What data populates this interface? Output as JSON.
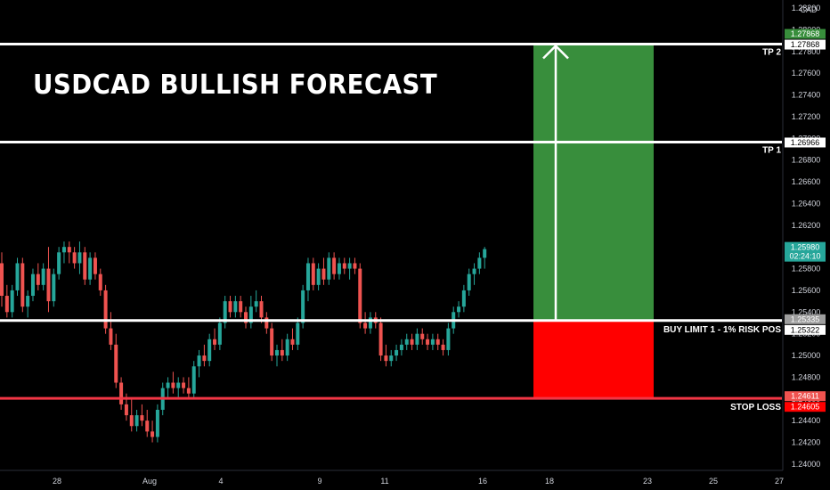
{
  "title": "USDCAD BULLISH FORECAST",
  "currency": "CAD",
  "last_price": "1.25980",
  "countdown": "02:24:10",
  "levels": {
    "tp2": {
      "label": "TP 2",
      "value": 1.27868,
      "tag": "1.27868",
      "entry_tag": "1.27868"
    },
    "tp1": {
      "label": "TP 1",
      "value": 1.26966,
      "tag": "1.26966"
    },
    "entry": {
      "label": "BUY LIMIT 1 - 1% RISK POS",
      "value": 1.25322,
      "tag": "1.25322",
      "tag_upper": "1.25335"
    },
    "stop": {
      "label": "STOP LOSS",
      "value": 1.24605,
      "tag": "1.24605",
      "tag_upper": "1.24611"
    }
  },
  "chart_data": {
    "type": "candlestick",
    "title": "USDCAD BULLISH FORECAST",
    "ylim": [
      1.2395,
      1.2825
    ],
    "y_ticks": [
      "1.28200",
      "1.28000",
      "1.27800",
      "1.27600",
      "1.27400",
      "1.27200",
      "1.27000",
      "1.26800",
      "1.26600",
      "1.26400",
      "1.26200",
      "1.26000",
      "1.25800",
      "1.25600",
      "1.25400",
      "1.25200",
      "1.25000",
      "1.24800",
      "1.24600",
      "1.24400",
      "1.24200",
      "1.24000"
    ],
    "x_ticks": [
      "28",
      "Aug",
      "4",
      "9",
      "11",
      "16",
      "18",
      "23",
      "25",
      "27"
    ],
    "colors": {
      "up": "#26a69a",
      "down": "#ef5350",
      "profit": "#388e3c",
      "loss": "#ff0000",
      "stop_line": "#f23645"
    },
    "candles": [
      [
        1.2585,
        1.2595,
        1.2545,
        1.2555
      ],
      [
        1.2555,
        1.2565,
        1.2535,
        1.254
      ],
      [
        1.254,
        1.2565,
        1.2535,
        1.256
      ],
      [
        1.256,
        1.259,
        1.2555,
        1.2585
      ],
      [
        1.2585,
        1.259,
        1.254,
        1.2545
      ],
      [
        1.2545,
        1.256,
        1.2535,
        1.2555
      ],
      [
        1.2555,
        1.258,
        1.255,
        1.2575
      ],
      [
        1.2575,
        1.2585,
        1.256,
        1.2565
      ],
      [
        1.2565,
        1.2585,
        1.256,
        1.258
      ],
      [
        1.258,
        1.26,
        1.254,
        1.255
      ],
      [
        1.255,
        1.258,
        1.2545,
        1.2575
      ],
      [
        1.2575,
        1.26,
        1.257,
        1.2595
      ],
      [
        1.2595,
        1.2605,
        1.2585,
        1.26
      ],
      [
        1.26,
        1.2605,
        1.2585,
        1.2595
      ],
      [
        1.2595,
        1.26,
        1.258,
        1.2585
      ],
      [
        1.2585,
        1.2605,
        1.2575,
        1.2595
      ],
      [
        1.2595,
        1.26,
        1.2565,
        1.257
      ],
      [
        1.257,
        1.2595,
        1.2565,
        1.259
      ],
      [
        1.259,
        1.2595,
        1.257,
        1.2575
      ],
      [
        1.2575,
        1.258,
        1.2555,
        1.256
      ],
      [
        1.256,
        1.2565,
        1.252,
        1.2525
      ],
      [
        1.2525,
        1.254,
        1.2505,
        1.251
      ],
      [
        1.251,
        1.252,
        1.247,
        1.2475
      ],
      [
        1.2475,
        1.248,
        1.245,
        1.2455
      ],
      [
        1.2455,
        1.2465,
        1.244,
        1.2445
      ],
      [
        1.2445,
        1.246,
        1.243,
        1.2435
      ],
      [
        1.2435,
        1.245,
        1.243,
        1.2445
      ],
      [
        1.2445,
        1.2455,
        1.2435,
        1.244
      ],
      [
        1.244,
        1.245,
        1.2425,
        1.243
      ],
      [
        1.243,
        1.244,
        1.242,
        1.2425
      ],
      [
        1.2425,
        1.2455,
        1.242,
        1.245
      ],
      [
        1.245,
        1.2475,
        1.2445,
        1.247
      ],
      [
        1.247,
        1.248,
        1.246,
        1.2475
      ],
      [
        1.2475,
        1.2485,
        1.2465,
        1.247
      ],
      [
        1.247,
        1.248,
        1.246,
        1.2475
      ],
      [
        1.2475,
        1.248,
        1.2465,
        1.247
      ],
      [
        1.247,
        1.248,
        1.246,
        1.2465
      ],
      [
        1.2465,
        1.2495,
        1.246,
        1.249
      ],
      [
        1.249,
        1.2505,
        1.248,
        1.25
      ],
      [
        1.25,
        1.251,
        1.249,
        1.2495
      ],
      [
        1.2495,
        1.252,
        1.249,
        1.2515
      ],
      [
        1.2515,
        1.2525,
        1.2505,
        1.251
      ],
      [
        1.251,
        1.2535,
        1.2505,
        1.253
      ],
      [
        1.253,
        1.2555,
        1.2525,
        1.255
      ],
      [
        1.255,
        1.2555,
        1.2535,
        1.254
      ],
      [
        1.254,
        1.2555,
        1.2535,
        1.255
      ],
      [
        1.255,
        1.2555,
        1.2535,
        1.254
      ],
      [
        1.254,
        1.2545,
        1.2525,
        1.253
      ],
      [
        1.253,
        1.2555,
        1.2525,
        1.2545
      ],
      [
        1.2545,
        1.256,
        1.254,
        1.255
      ],
      [
        1.255,
        1.2555,
        1.253,
        1.2535
      ],
      [
        1.2535,
        1.254,
        1.252,
        1.2525
      ],
      [
        1.2525,
        1.253,
        1.2495,
        1.25
      ],
      [
        1.25,
        1.251,
        1.249,
        1.2505
      ],
      [
        1.2505,
        1.2515,
        1.2495,
        1.25
      ],
      [
        1.25,
        1.252,
        1.2495,
        1.2515
      ],
      [
        1.2515,
        1.2525,
        1.2505,
        1.251
      ],
      [
        1.251,
        1.2535,
        1.2505,
        1.253
      ],
      [
        1.253,
        1.2565,
        1.2525,
        1.256
      ],
      [
        1.256,
        1.259,
        1.255,
        1.2585
      ],
      [
        1.2585,
        1.259,
        1.256,
        1.2565
      ],
      [
        1.2565,
        1.2585,
        1.256,
        1.258
      ],
      [
        1.258,
        1.259,
        1.2565,
        1.257
      ],
      [
        1.257,
        1.2595,
        1.2565,
        1.259
      ],
      [
        1.259,
        1.2595,
        1.257,
        1.2575
      ],
      [
        1.2575,
        1.259,
        1.257,
        1.2585
      ],
      [
        1.2585,
        1.259,
        1.2575,
        1.258
      ],
      [
        1.258,
        1.259,
        1.257,
        1.2585
      ],
      [
        1.2585,
        1.259,
        1.2575,
        1.258
      ],
      [
        1.258,
        1.2585,
        1.2525,
        1.253
      ],
      [
        1.253,
        1.254,
        1.252,
        1.2525
      ],
      [
        1.2525,
        1.254,
        1.252,
        1.2535
      ],
      [
        1.2535,
        1.254,
        1.2525,
        1.253
      ],
      [
        1.253,
        1.2535,
        1.2495,
        1.25
      ],
      [
        1.25,
        1.251,
        1.249,
        1.2495
      ],
      [
        1.2495,
        1.2505,
        1.249,
        1.25
      ],
      [
        1.25,
        1.251,
        1.2495,
        1.2505
      ],
      [
        1.2505,
        1.2515,
        1.25,
        1.251
      ],
      [
        1.251,
        1.252,
        1.2505,
        1.2515
      ],
      [
        1.2515,
        1.252,
        1.2505,
        1.251
      ],
      [
        1.251,
        1.2525,
        1.2505,
        1.252
      ],
      [
        1.252,
        1.2525,
        1.251,
        1.2515
      ],
      [
        1.2515,
        1.252,
        1.2505,
        1.251
      ],
      [
        1.251,
        1.252,
        1.2505,
        1.2515
      ],
      [
        1.2515,
        1.252,
        1.2505,
        1.251
      ],
      [
        1.251,
        1.2515,
        1.25,
        1.2505
      ],
      [
        1.2505,
        1.253,
        1.25,
        1.2525
      ],
      [
        1.2525,
        1.2545,
        1.252,
        1.254
      ],
      [
        1.254,
        1.255,
        1.2535,
        1.2545
      ],
      [
        1.2545,
        1.2565,
        1.254,
        1.256
      ],
      [
        1.256,
        1.258,
        1.2555,
        1.2575
      ],
      [
        1.2575,
        1.2585,
        1.2565,
        1.258
      ],
      [
        1.258,
        1.2595,
        1.2575,
        1.259
      ],
      [
        1.259,
        1.26,
        1.258,
        1.2598
      ]
    ]
  }
}
